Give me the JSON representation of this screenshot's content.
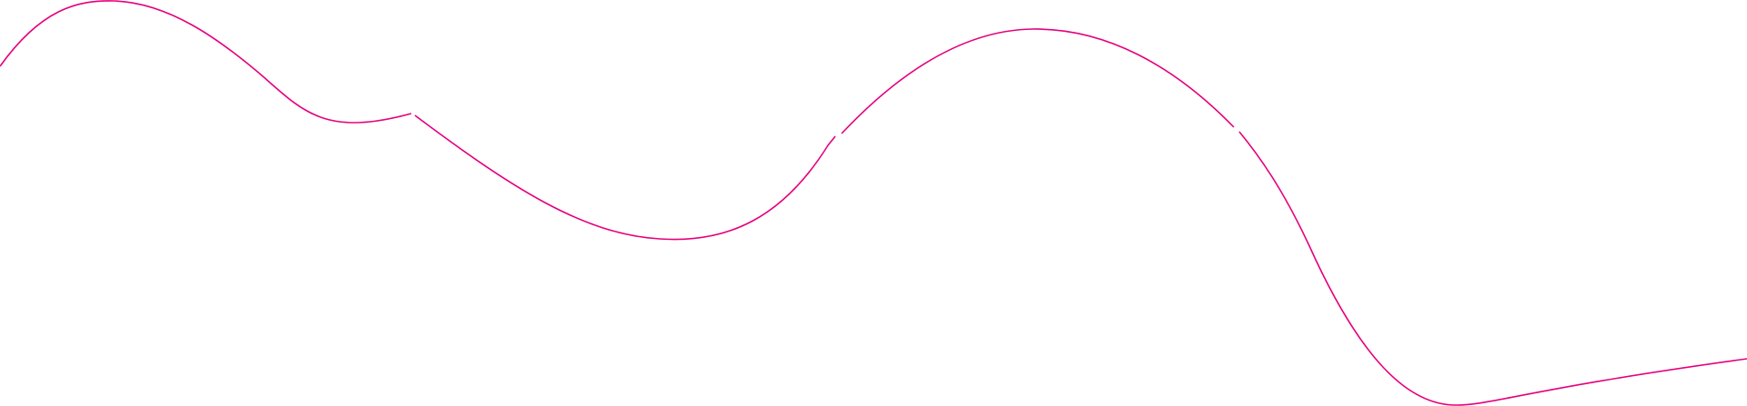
{
  "decoration": {
    "line_color": "#e5007d",
    "background_color": "#ffffff"
  }
}
